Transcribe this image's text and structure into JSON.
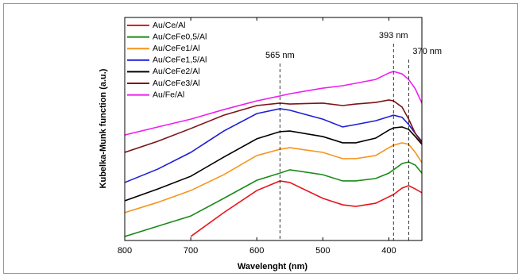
{
  "chart_data": {
    "type": "line",
    "x_label": "Wavelenght (nm)",
    "y_label": "Kubelka-Munk function (a.u.)",
    "x": [
      800,
      750,
      700,
      650,
      600,
      565,
      550,
      500,
      470,
      450,
      420,
      400,
      393,
      380,
      370,
      360,
      350
    ],
    "xlim": [
      800,
      350
    ],
    "xticks": [
      800,
      700,
      600,
      500,
      400
    ],
    "ylim": [
      0,
      100
    ],
    "legend": "upper left",
    "series": [
      {
        "name": "Au/Ce/Al",
        "color": "#e8141c",
        "values": [
          null,
          null,
          1.8,
          12.5,
          22.4,
          26.7,
          26.0,
          18.9,
          16.0,
          15.3,
          16.7,
          19.6,
          20.6,
          23.5,
          24.6,
          23.1,
          21.4
        ]
      },
      {
        "name": "Au/CeFe0,5/Al",
        "color": "#1a8a1a",
        "values": [
          1.8,
          6.4,
          11.0,
          18.9,
          27.0,
          30.2,
          31.7,
          29.5,
          26.7,
          26.7,
          27.8,
          30.2,
          31.7,
          34.5,
          35.2,
          33.8,
          30.2
        ]
      },
      {
        "name": "Au/CeFe1/Al",
        "color": "#f7941d",
        "values": [
          12.5,
          17.1,
          22.4,
          29.5,
          38.1,
          40.9,
          41.6,
          39.5,
          36.7,
          36.7,
          38.1,
          41.6,
          42.7,
          43.8,
          43.1,
          39.5,
          34.9
        ]
      },
      {
        "name": "Au/CeFe1,5/Al",
        "color": "#1f1fd6",
        "values": [
          26.0,
          32.0,
          39.5,
          49.1,
          56.9,
          59.1,
          58.4,
          54.4,
          50.9,
          52.0,
          53.7,
          55.5,
          56.2,
          55.2,
          52.0,
          48.0,
          44.5
        ]
      },
      {
        "name": "Au/CeFe2/Al",
        "color": "#000000",
        "values": [
          17.8,
          23.1,
          28.8,
          37.4,
          45.6,
          48.8,
          49.1,
          46.6,
          43.8,
          43.8,
          45.9,
          49.5,
          50.5,
          50.9,
          49.8,
          46.6,
          43.1
        ]
      },
      {
        "name": "Au/CeFe3/Al",
        "color": "#7b1416",
        "values": [
          39.5,
          44.5,
          50.2,
          56.2,
          60.5,
          61.6,
          61.2,
          61.6,
          60.5,
          61.2,
          61.9,
          63.0,
          62.6,
          59.8,
          54.4,
          48.0,
          43.8
        ]
      },
      {
        "name": "Au/Fe/Al",
        "color": "#ef1fef",
        "values": [
          47.3,
          50.9,
          54.4,
          58.7,
          62.6,
          64.8,
          65.8,
          68.3,
          69.4,
          70.5,
          72.2,
          75.1,
          75.8,
          74.7,
          72.2,
          68.0,
          61.6
        ]
      }
    ],
    "annotations": [
      {
        "text": "565 nm",
        "x": 565
      },
      {
        "text": "393 nm",
        "x": 393
      },
      {
        "text": "370 nm",
        "x": 370
      }
    ]
  }
}
